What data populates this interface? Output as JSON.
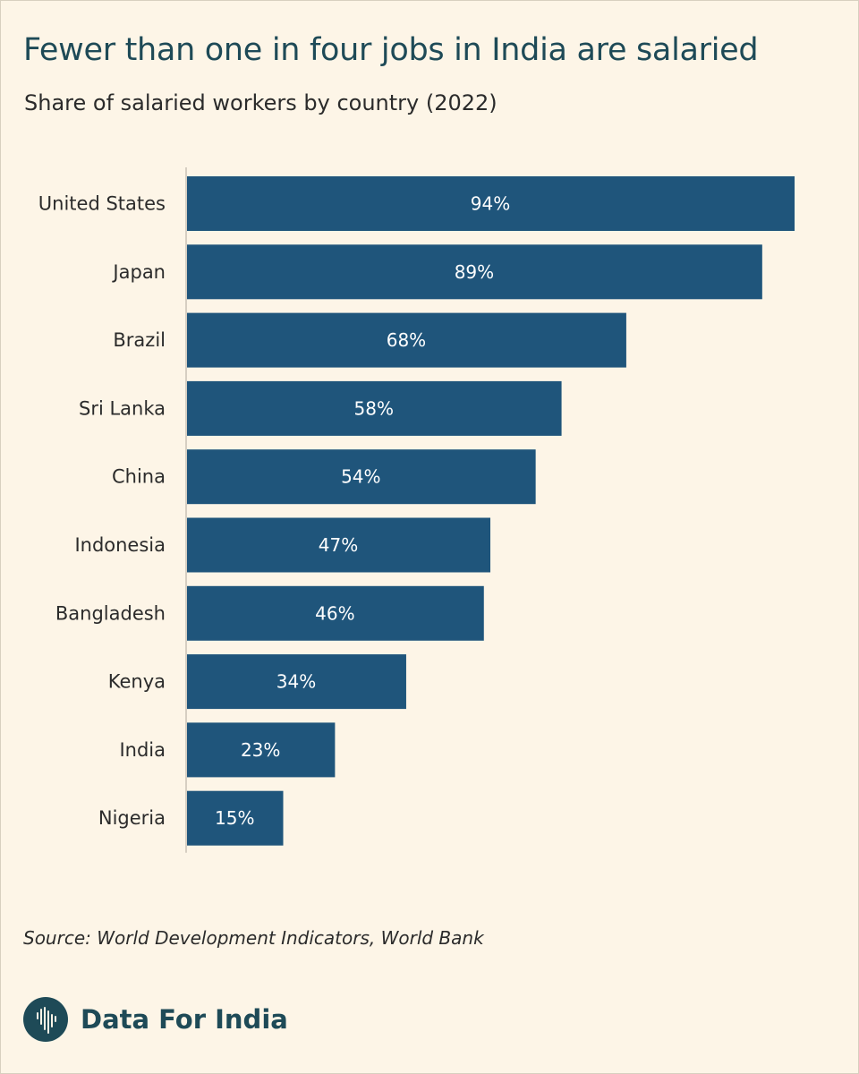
{
  "title": "Fewer than one in four jobs in India are salaried",
  "subtitle": "Share of salaried workers by country (2022)",
  "source": "Source: World Development Indicators, World Bank",
  "brand": {
    "name": "Data For India",
    "logo_icon": "india-map-logo-icon"
  },
  "colors": {
    "background": "#fdf5e7",
    "bar": "#1f557b",
    "title": "#1e4a57",
    "axis": "#c9c2b5"
  },
  "chart_data": {
    "type": "bar",
    "orientation": "horizontal",
    "title": "Fewer than one in four jobs in India are salaried",
    "subtitle": "Share of salaried workers by country (2022)",
    "categories": [
      "United States",
      "Japan",
      "Brazil",
      "Sri Lanka",
      "China",
      "Indonesia",
      "Bangladesh",
      "Kenya",
      "India",
      "Nigeria"
    ],
    "values": [
      94,
      89,
      68,
      58,
      54,
      47,
      46,
      34,
      23,
      15
    ],
    "value_labels": [
      "94%",
      "89%",
      "68%",
      "58%",
      "54%",
      "47%",
      "46%",
      "34%",
      "23%",
      "15%"
    ],
    "unit": "%",
    "xlim": [
      0,
      94
    ],
    "grid": false,
    "legend": "none"
  }
}
